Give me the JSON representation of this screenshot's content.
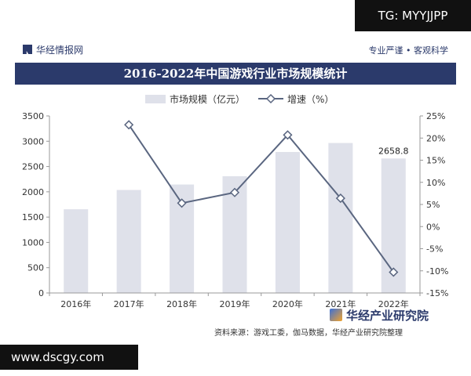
{
  "header": {
    "brand": "华经情报网",
    "slogan": "专业严谨 • 客观科学",
    "title": "2016-2022年中国游戏行业市场规模统计"
  },
  "watermarks": {
    "tg": "TG: MYYJJPP",
    "site": "www.dscgy.com"
  },
  "footer": {
    "source": "资料来源：游戏工委，伽马数据，华经产业研究院整理",
    "brand": "华经产业研究院"
  },
  "colors": {
    "bar": "#dfe1ea",
    "line": "#5a6680",
    "accent": "#2b3a6b"
  },
  "chart_data": {
    "type": "bar",
    "title": "2016-2022年中国游戏行业市场规模统计",
    "categories": [
      "2016年",
      "2017年",
      "2018年",
      "2019年",
      "2020年",
      "2021年",
      "2022年"
    ],
    "series": [
      {
        "name": "市场规模（亿元）",
        "type": "bar",
        "axis": "left",
        "values": [
          1655,
          2036,
          2144,
          2308,
          2787,
          2965,
          2658.8
        ]
      },
      {
        "name": "增速（%）",
        "type": "line",
        "axis": "right",
        "values": [
          null,
          23.0,
          5.3,
          7.7,
          20.7,
          6.4,
          -10.3
        ]
      }
    ],
    "ylim_left": [
      0,
      3500
    ],
    "yticks_left": [
      "0",
      "500",
      "1000",
      "1500",
      "2000",
      "2500",
      "3000",
      "3500"
    ],
    "ylim_right": [
      -15,
      25
    ],
    "yticks_right": [
      "-15%",
      "-10%",
      "-5%",
      "0%",
      "5%",
      "10%",
      "15%",
      "20%",
      "25%"
    ],
    "data_labels": [
      {
        "index": 6,
        "text": "2658.8"
      }
    ],
    "legend": "top",
    "grid": false
  }
}
